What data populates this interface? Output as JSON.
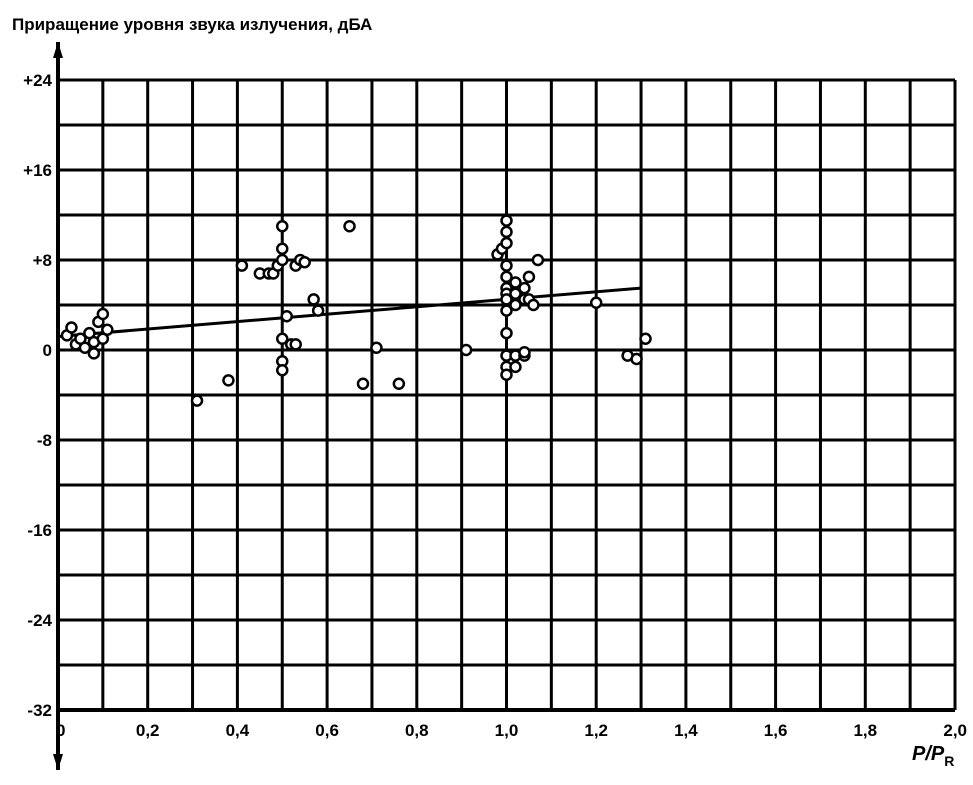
{
  "chart_data": {
    "type": "scatter",
    "title": "Приращение уровня звука излучения, дБА",
    "xlabel": "P/P",
    "xlabel_subscript": "R",
    "xlim": [
      0,
      2.0
    ],
    "ylim": [
      -32,
      24
    ],
    "x_ticks": [
      0,
      0.2,
      0.4,
      0.6,
      0.8,
      1.0,
      1.2,
      1.4,
      1.6,
      1.8,
      2.0
    ],
    "x_tick_labels": [
      "0",
      "0,2",
      "0,4",
      "0,6",
      "0,8",
      "1,0",
      "1,2",
      "1,4",
      "1,6",
      "1,8",
      "2,0"
    ],
    "y_ticks": [
      24,
      16,
      8,
      0,
      -8,
      -16,
      -24,
      -32
    ],
    "y_tick_labels": [
      "+24",
      "+16",
      "+8",
      "0",
      "-8",
      "-16",
      "-24",
      "-32"
    ],
    "grid": true,
    "trend_line": {
      "x": [
        0,
        1.3
      ],
      "y": [
        1.2,
        5.5
      ]
    },
    "points": [
      [
        0.02,
        1.3
      ],
      [
        0.03,
        2.0
      ],
      [
        0.04,
        0.5
      ],
      [
        0.05,
        1.0
      ],
      [
        0.06,
        0.2
      ],
      [
        0.07,
        1.5
      ],
      [
        0.08,
        0.7
      ],
      [
        0.09,
        2.5
      ],
      [
        0.1,
        1.0
      ],
      [
        0.1,
        3.2
      ],
      [
        0.11,
        1.8
      ],
      [
        0.08,
        -0.3
      ],
      [
        0.31,
        -4.5
      ],
      [
        0.38,
        -2.7
      ],
      [
        0.41,
        7.5
      ],
      [
        0.45,
        6.8
      ],
      [
        0.47,
        6.8
      ],
      [
        0.48,
        6.8
      ],
      [
        0.49,
        7.5
      ],
      [
        0.5,
        11.0
      ],
      [
        0.5,
        9.0
      ],
      [
        0.5,
        8.0
      ],
      [
        0.5,
        1.0
      ],
      [
        0.5,
        -1.0
      ],
      [
        0.5,
        -1.8
      ],
      [
        0.51,
        3.0
      ],
      [
        0.52,
        0.5
      ],
      [
        0.53,
        7.5
      ],
      [
        0.53,
        0.5
      ],
      [
        0.54,
        8.0
      ],
      [
        0.55,
        7.8
      ],
      [
        0.57,
        4.5
      ],
      [
        0.58,
        3.5
      ],
      [
        0.65,
        11.0
      ],
      [
        0.68,
        -3.0
      ],
      [
        0.71,
        0.2
      ],
      [
        0.76,
        -3.0
      ],
      [
        0.91,
        0.0
      ],
      [
        0.98,
        8.5
      ],
      [
        0.99,
        9.0
      ],
      [
        1.0,
        11.5
      ],
      [
        1.0,
        10.5
      ],
      [
        1.0,
        9.5
      ],
      [
        1.0,
        7.5
      ],
      [
        1.0,
        6.5
      ],
      [
        1.0,
        5.5
      ],
      [
        1.0,
        5.0
      ],
      [
        1.0,
        4.5
      ],
      [
        1.0,
        3.5
      ],
      [
        1.0,
        1.5
      ],
      [
        1.0,
        -0.5
      ],
      [
        1.0,
        -1.5
      ],
      [
        1.0,
        -2.2
      ],
      [
        1.02,
        6.0
      ],
      [
        1.02,
        5.0
      ],
      [
        1.02,
        4.0
      ],
      [
        1.02,
        -0.5
      ],
      [
        1.02,
        -1.5
      ],
      [
        1.04,
        5.5
      ],
      [
        1.04,
        4.5
      ],
      [
        1.04,
        -0.5
      ],
      [
        1.05,
        6.5
      ],
      [
        1.05,
        4.5
      ],
      [
        1.06,
        4.0
      ],
      [
        1.07,
        8.0
      ],
      [
        1.04,
        -0.2
      ],
      [
        1.2,
        4.2
      ],
      [
        1.27,
        -0.5
      ],
      [
        1.29,
        -0.8
      ],
      [
        1.31,
        1.0
      ]
    ]
  }
}
